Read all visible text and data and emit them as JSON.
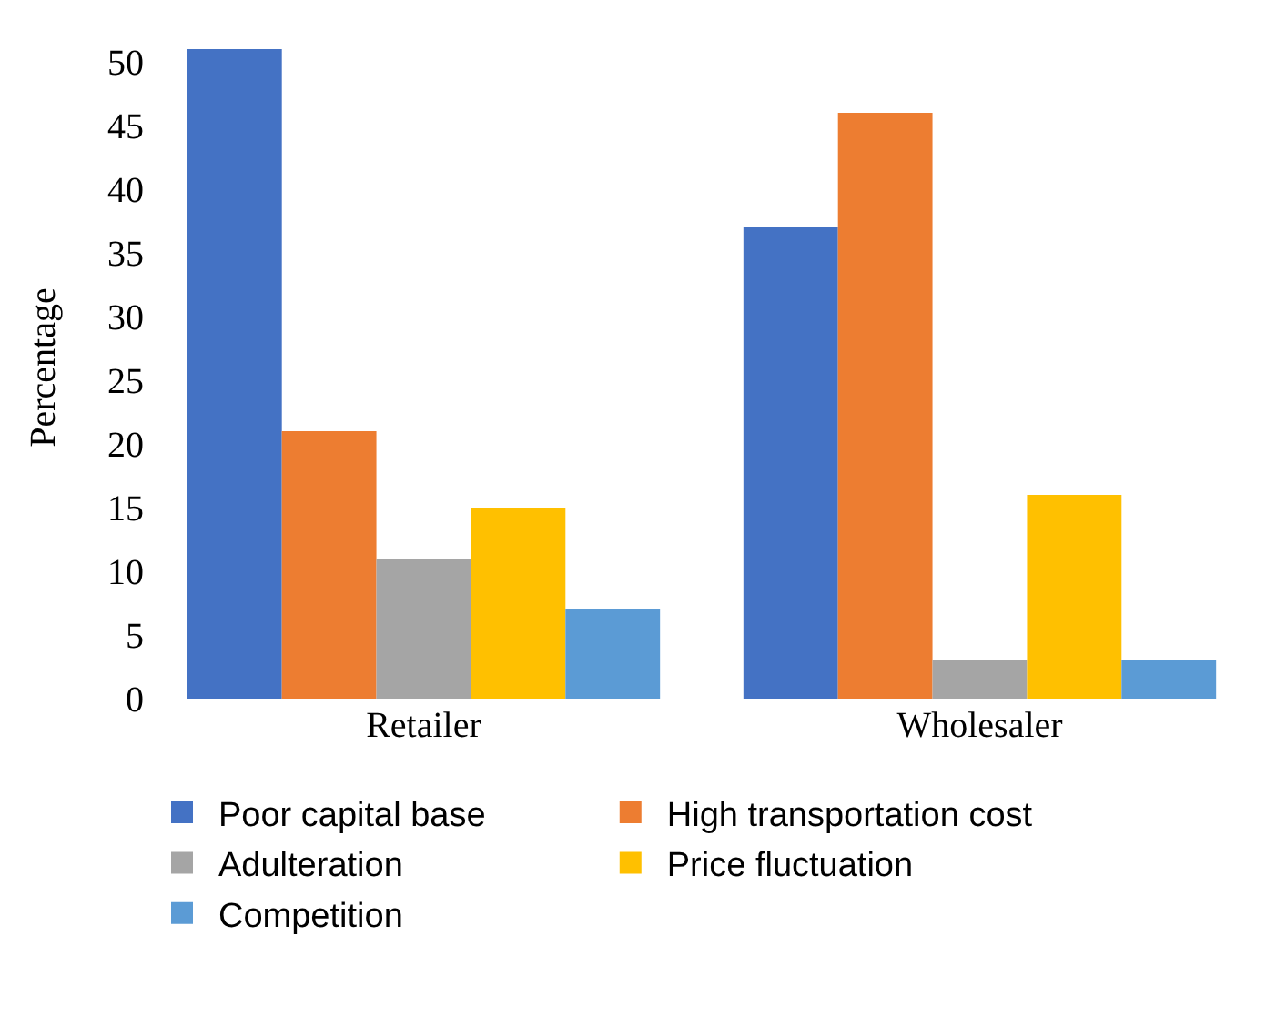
{
  "chart_data": {
    "type": "bar",
    "ylabel": "Percentage",
    "categories": [
      "Retailer",
      "Wholesaler"
    ],
    "series": [
      {
        "name": "Poor capital base",
        "color": "#4472c4",
        "values": [
          51,
          37
        ]
      },
      {
        "name": "High transportation cost",
        "color": "#ed7d31",
        "values": [
          21,
          46
        ]
      },
      {
        "name": "Adulteration",
        "color": "#a5a5a5",
        "values": [
          11,
          3
        ]
      },
      {
        "name": "Price fluctuation",
        "color": "#ffc000",
        "values": [
          15,
          16
        ]
      },
      {
        "name": "Competition",
        "color": "#5b9bd5",
        "values": [
          7,
          3
        ]
      }
    ],
    "ylim": [
      0,
      52
    ],
    "yticks": [
      0,
      5,
      10,
      15,
      20,
      25,
      30,
      35,
      40,
      45,
      50
    ],
    "grid": false,
    "legend": "bottom"
  }
}
